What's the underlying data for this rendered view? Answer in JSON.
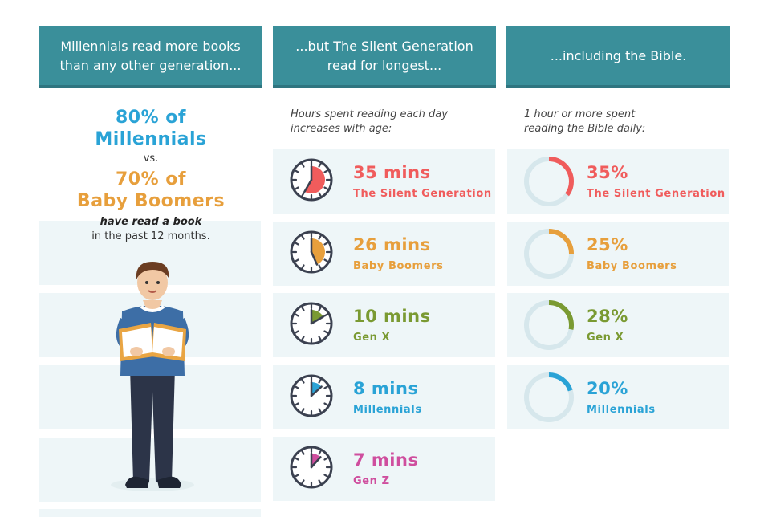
{
  "colors": {
    "header_bg": "#3a8f9a",
    "row_bg": "#eef6f8",
    "millennials": "#2aa3d6",
    "baby_boomers": "#e79f3c",
    "silent": "#f05c5c",
    "genx": "#7a9a32",
    "genz": "#cf4e9e"
  },
  "headers": [
    {
      "line1": "Millennials read more books",
      "line2": "than any other generation..."
    },
    {
      "line1": "...but The Silent Generation",
      "line2": "read for longest..."
    },
    {
      "line1": "...including the Bible.",
      "line2": ""
    }
  ],
  "left": {
    "stat1_line1": "80% of",
    "stat1_line2": "Millennials",
    "vs": "vs.",
    "stat2_line1": "70% of",
    "stat2_line2": "Baby Boomers",
    "caption_line1": "have read a book",
    "caption_line2": "in the past 12 months."
  },
  "middle": {
    "subtitle_line1": "Hours spent reading each day",
    "subtitle_line2": "increases with age:",
    "rows": [
      {
        "value": "35 mins",
        "label": "The Silent Generation",
        "minutes": 35,
        "color": "#f05c5c",
        "icon": "clock-icon"
      },
      {
        "value": "26 mins",
        "label": "Baby Boomers",
        "minutes": 26,
        "color": "#e79f3c",
        "icon": "clock-icon"
      },
      {
        "value": "10 mins",
        "label": "Gen X",
        "minutes": 10,
        "color": "#7a9a32",
        "icon": "clock-icon"
      },
      {
        "value": "8 mins",
        "label": "Millennials",
        "minutes": 8,
        "color": "#2aa3d6",
        "icon": "clock-icon"
      },
      {
        "value": "7 mins",
        "label": "Gen Z",
        "minutes": 7,
        "color": "#cf4e9e",
        "icon": "clock-icon"
      }
    ]
  },
  "right": {
    "subtitle_line1": "1 hour or more spent",
    "subtitle_line2": "reading the Bible daily:",
    "rows": [
      {
        "value": "35%",
        "label": "The Silent Generation",
        "percent": 35,
        "color": "#f05c5c",
        "icon": "donut-icon"
      },
      {
        "value": "25%",
        "label": "Baby Boomers",
        "percent": 25,
        "color": "#e79f3c",
        "icon": "donut-icon"
      },
      {
        "value": "28%",
        "label": "Gen X",
        "percent": 28,
        "color": "#7a9a32",
        "icon": "donut-icon"
      },
      {
        "value": "20%",
        "label": "Millennials",
        "percent": 20,
        "color": "#2aa3d6",
        "icon": "donut-icon"
      }
    ]
  }
}
